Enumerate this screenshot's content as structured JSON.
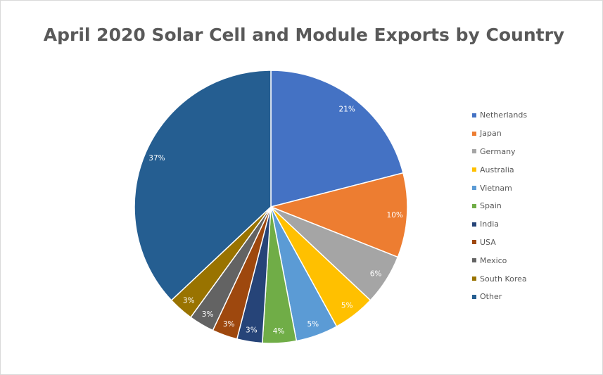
{
  "chart_data": {
    "type": "pie",
    "title": "April 2020 Solar Cell and Module Exports by Country",
    "categories": [
      "Netherlands",
      "Japan",
      "Germany",
      "Australia",
      "Vietnam",
      "Spain",
      "India",
      "USA",
      "Mexico",
      "South Korea",
      "Other"
    ],
    "values": [
      21,
      10,
      6,
      5,
      5,
      4,
      3,
      3,
      3,
      3,
      37
    ],
    "data_labels": [
      "21%",
      "10%",
      "6%",
      "5%",
      "5%",
      "4%",
      "3%",
      "3%",
      "3%",
      "3%",
      "37%"
    ],
    "colors": [
      "#4472C4",
      "#ED7D31",
      "#A5A5A5",
      "#FFC000",
      "#5B9BD5",
      "#70AD47",
      "#264478",
      "#9E480E",
      "#636363",
      "#997300",
      "#255E91"
    ],
    "start_angle": "12 o'clock, clockwise",
    "legend_position": "right"
  }
}
